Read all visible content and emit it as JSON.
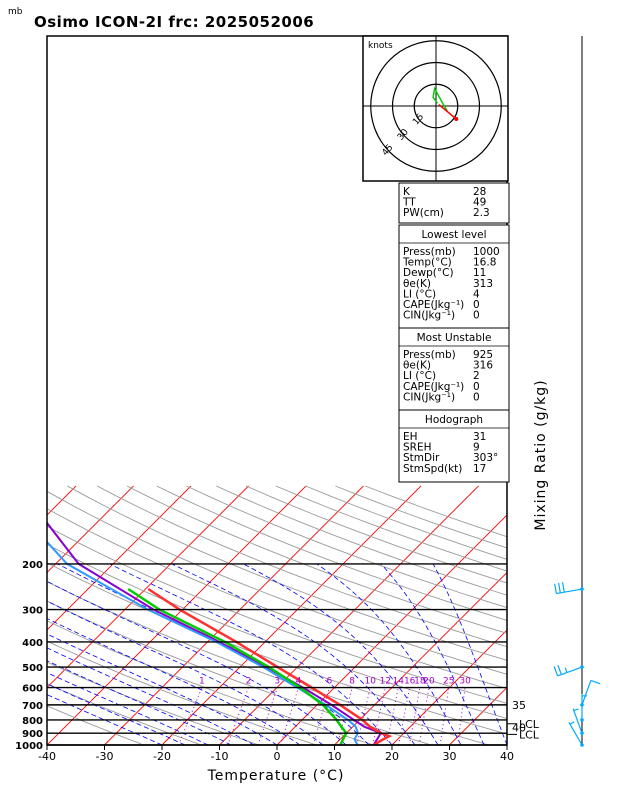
{
  "chart_data": {
    "type": "skew-t",
    "title": "Osimo ICON-2I frc: 2025052006",
    "pressure_unit_label": "mb",
    "xlabel": "Temperature (°C)",
    "right_label": "Mixing Ratio (g/kg)",
    "xlim": [
      -40,
      40
    ],
    "x_ticks": [
      -40,
      -30,
      -20,
      -10,
      0,
      10,
      20,
      30,
      40
    ],
    "ylim_mb": [
      1000,
      100
    ],
    "y_ticks": [
      200,
      300,
      400,
      500,
      600,
      700,
      800,
      900,
      1000
    ],
    "mixing_ratio_labels": [
      "1",
      "2",
      "3",
      "4",
      "6",
      "8",
      "10",
      "12",
      "14",
      "16",
      "18",
      "20",
      "25",
      "30"
    ],
    "right_edge_labels": [
      "35",
      "40",
      "LCL",
      "LCL"
    ],
    "temperature_profile": [
      {
        "p": 1000,
        "t": 16.8
      },
      {
        "p": 950,
        "t": 17.5
      },
      {
        "p": 925,
        "t": 18.0
      },
      {
        "p": 900,
        "t": 16.0
      },
      {
        "p": 850,
        "t": 13.0
      },
      {
        "p": 800,
        "t": 10.5
      },
      {
        "p": 700,
        "t": 4.0
      },
      {
        "p": 600,
        "t": -4.0
      },
      {
        "p": 500,
        "t": -13.5
      },
      {
        "p": 400,
        "t": -25.0
      },
      {
        "p": 300,
        "t": -40.5
      },
      {
        "p": 250,
        "t": -49.5
      }
    ],
    "dewpoint_profile": [
      {
        "p": 1000,
        "t": 11.0
      },
      {
        "p": 950,
        "t": 10.5
      },
      {
        "p": 900,
        "t": 10.0
      },
      {
        "p": 850,
        "t": 8.0
      },
      {
        "p": 800,
        "t": 6.0
      },
      {
        "p": 700,
        "t": 1.0
      },
      {
        "p": 600,
        "t": -6.0
      },
      {
        "p": 500,
        "t": -15.0
      },
      {
        "p": 400,
        "t": -27.0
      },
      {
        "p": 300,
        "t": -44.0
      },
      {
        "p": 250,
        "t": -53.0
      }
    ],
    "parcel_profile": [
      {
        "p": 1000,
        "t": 16.8
      },
      {
        "p": 900,
        "t": 16.0
      },
      {
        "p": 850,
        "t": 12.0
      },
      {
        "p": 800,
        "t": 9.0
      },
      {
        "p": 700,
        "t": 2.5
      },
      {
        "p": 600,
        "t": -5.5
      },
      {
        "p": 500,
        "t": -15.5
      },
      {
        "p": 400,
        "t": -28.0
      },
      {
        "p": 300,
        "t": -45.0
      },
      {
        "p": 200,
        "t": -66.0
      },
      {
        "p": 100,
        "t": -90.0
      }
    ],
    "cyan_profile": [
      {
        "p": 1000,
        "t": 14.0
      },
      {
        "p": 950,
        "t": 12.5
      },
      {
        "p": 900,
        "t": 12.0
      },
      {
        "p": 850,
        "t": 10.5
      },
      {
        "p": 800,
        "t": 8.0
      },
      {
        "p": 700,
        "t": 1.5
      },
      {
        "p": 600,
        "t": -6.5
      },
      {
        "p": 500,
        "t": -16.0
      },
      {
        "p": 400,
        "t": -28.5
      },
      {
        "p": 300,
        "t": -46.0
      },
      {
        "p": 200,
        "t": -68.0
      },
      {
        "p": 100,
        "t": -94.0
      }
    ],
    "hodograph": {
      "unit": "knots",
      "ring_labels": [
        "15",
        "30",
        "45"
      ],
      "rings_kt": [
        15,
        30,
        45
      ],
      "wind_uv_kt": [
        [
          1,
          2
        ],
        [
          -2,
          6
        ],
        [
          -1,
          12
        ],
        [
          4,
          3
        ],
        [
          8,
          -4
        ]
      ],
      "storm_motion_uv_kt": [
        14,
        -9
      ]
    },
    "wind_barbs": [
      {
        "p": 1000,
        "dir": 330,
        "speed": 5
      },
      {
        "p": 900,
        "dir": 340,
        "speed": 5
      },
      {
        "p": 800,
        "dir": 0,
        "speed": 5
      },
      {
        "p": 700,
        "dir": 20,
        "speed": 10
      },
      {
        "p": 500,
        "dir": 250,
        "speed": 25
      },
      {
        "p": 250,
        "dir": 260,
        "speed": 30
      }
    ],
    "grid": true,
    "indices": {
      "rows": [
        {
          "label": "K",
          "value": "28"
        },
        {
          "label": "TT",
          "value": "49"
        },
        {
          "label": "PW(cm)",
          "value": "2.3"
        }
      ],
      "lowest_level_title": "Lowest level",
      "lowest_level": [
        {
          "label": "Press(mb)",
          "value": "1000"
        },
        {
          "label": "Temp(°C)",
          "value": "16.8"
        },
        {
          "label": "Dewp(°C)",
          "value": "11"
        },
        {
          "label": "θe(K)",
          "value": "313"
        },
        {
          "label": "LI (°C)",
          "value": "4"
        },
        {
          "label": "CAPE(Jkg⁻¹)",
          "value": "0"
        },
        {
          "label": "CIN(Jkg⁻¹)",
          "value": "0"
        }
      ],
      "most_unstable_title": "Most Unstable",
      "most_unstable": [
        {
          "label": "Press(mb)",
          "value": "925"
        },
        {
          "label": "θe(K)",
          "value": "316"
        },
        {
          "label": "LI (°C)",
          "value": "2"
        },
        {
          "label": "CAPE(Jkg⁻¹)",
          "value": "0"
        },
        {
          "label": "CIN(Jkg⁻¹)",
          "value": "0"
        }
      ],
      "hodograph_title": "Hodograph",
      "hodograph_rows": [
        {
          "label": "EH",
          "value": "31"
        },
        {
          "label": "SREH",
          "value": "9"
        },
        {
          "label": "StmDir",
          "value": "303°"
        },
        {
          "label": "StmSpd(kt)",
          "value": "17"
        }
      ]
    },
    "colors": {
      "temperature": "#ff3030",
      "dewpoint": "#00cc00",
      "parcel": "#8800cc",
      "cyan": "#3399ff",
      "isotherms": "#ff0000",
      "dry_adiabats": "#0000ff",
      "moist_adiabats": "#0000ff",
      "mixing_ratio": "#a000c8",
      "barbs": "#00aaff"
    }
  }
}
